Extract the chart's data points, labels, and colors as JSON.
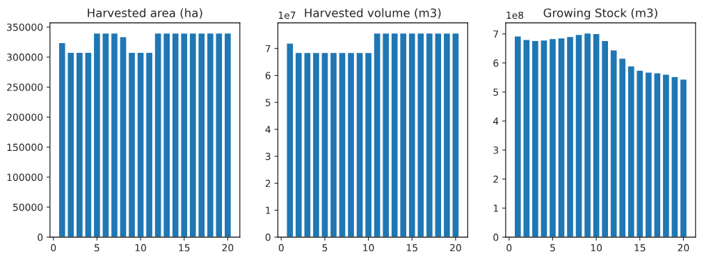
{
  "chart_data": [
    {
      "type": "bar",
      "title": "Harvested area (ha)",
      "x": [
        1,
        2,
        3,
        4,
        5,
        6,
        7,
        8,
        9,
        10,
        11,
        12,
        13,
        14,
        15,
        16,
        17,
        18,
        19,
        20
      ],
      "series": [
        {
          "color": "#1f77b4",
          "values": [
            324000,
            308000,
            308000,
            308000,
            340000,
            340000,
            340000,
            334000,
            308000,
            308000,
            308000,
            340000,
            340000,
            340000,
            340000,
            340000,
            340000,
            340000,
            340000,
            340000
          ]
        }
      ],
      "xlim": [
        -0.39,
        21.39
      ],
      "xticks": [
        0,
        5,
        10,
        15,
        20
      ],
      "ylim": [
        0,
        357000
      ],
      "yticks": [
        0,
        50000,
        100000,
        150000,
        200000,
        250000,
        300000,
        350000
      ],
      "grid": false,
      "legend": false
    },
    {
      "type": "bar",
      "title": "Harvested volume (m3)",
      "annotations": [
        "1e7"
      ],
      "x": [
        1,
        2,
        3,
        4,
        5,
        6,
        7,
        8,
        9,
        10,
        11,
        12,
        13,
        14,
        15,
        16,
        17,
        18,
        19,
        20
      ],
      "series": [
        {
          "color": "#1f77b4",
          "values": [
            7.2,
            6.85,
            6.85,
            6.85,
            6.85,
            6.85,
            6.85,
            6.85,
            6.85,
            6.85,
            7.57,
            7.57,
            7.57,
            7.57,
            7.57,
            7.57,
            7.57,
            7.57,
            7.57,
            7.57
          ]
        }
      ],
      "xlim": [
        -0.39,
        21.39
      ],
      "xticks": [
        0,
        5,
        10,
        15,
        20
      ],
      "ylim": [
        0,
        7.95
      ],
      "yticks": [
        0,
        1,
        2,
        3,
        4,
        5,
        6,
        7
      ],
      "grid": false,
      "legend": false
    },
    {
      "type": "bar",
      "title": "Growing Stock (m3)",
      "annotations": [
        "1e8"
      ],
      "x": [
        1,
        2,
        3,
        4,
        5,
        6,
        7,
        8,
        9,
        10,
        11,
        12,
        13,
        14,
        15,
        16,
        17,
        18,
        19,
        20
      ],
      "series": [
        {
          "color": "#1f77b4",
          "values": [
            6.93,
            6.81,
            6.77,
            6.79,
            6.84,
            6.86,
            6.91,
            6.98,
            7.03,
            7.01,
            6.77,
            6.45,
            6.16,
            5.9,
            5.75,
            5.68,
            5.66,
            5.61,
            5.53,
            5.44
          ]
        }
      ],
      "xlim": [
        -0.39,
        21.39
      ],
      "xticks": [
        0,
        5,
        10,
        15,
        20
      ],
      "ylim": [
        0,
        7.38
      ],
      "yticks": [
        0,
        1,
        2,
        3,
        4,
        5,
        6,
        7
      ],
      "grid": false,
      "legend": false
    }
  ]
}
